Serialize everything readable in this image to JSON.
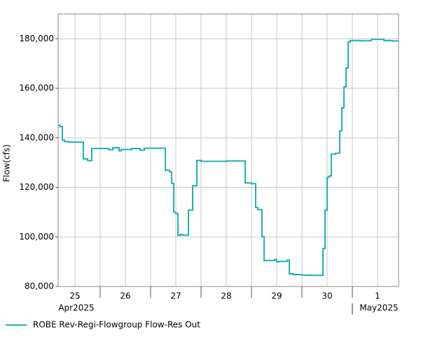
{
  "chart_data": {
    "type": "line",
    "y_label": "Flow(cfs)",
    "x": [
      "2025-04-25T04:00",
      "2025-04-25T05:00",
      "2025-04-25T06:00",
      "2025-04-25T07:00",
      "2025-04-25T09:00",
      "2025-04-25T16:00",
      "2025-04-25T18:00",
      "2025-04-25T20:00",
      "2025-04-26T04:00",
      "2025-04-26T06:00",
      "2025-04-26T09:00",
      "2025-04-26T10:00",
      "2025-04-26T15:00",
      "2025-04-26T19:00",
      "2025-04-26T21:00",
      "2025-04-27T07:00",
      "2025-04-27T09:00",
      "2025-04-27T10:00",
      "2025-04-27T11:00",
      "2025-04-27T12:00",
      "2025-04-27T13:00",
      "2025-04-27T14:00",
      "2025-04-27T15:00",
      "2025-04-27T18:00",
      "2025-04-27T20:00",
      "2025-04-27T22:00",
      "2025-04-28T00:00",
      "2025-04-28T12:00",
      "2025-04-28T21:00",
      "2025-04-29T00:00",
      "2025-04-29T02:00",
      "2025-04-29T03:00",
      "2025-04-29T05:00",
      "2025-04-29T06:00",
      "2025-04-29T11:00",
      "2025-04-29T12:00",
      "2025-04-29T13:00",
      "2025-04-29T17:00",
      "2025-04-29T18:00",
      "2025-04-29T20:00",
      "2025-04-30T00:00",
      "2025-04-30T04:00",
      "2025-04-30T10:00",
      "2025-04-30T11:00",
      "2025-04-30T12:00",
      "2025-04-30T13:00",
      "2025-04-30T14:00",
      "2025-04-30T16:00",
      "2025-04-30T18:00",
      "2025-04-30T19:00",
      "2025-04-30T20:00",
      "2025-04-30T21:00",
      "2025-04-30T22:00",
      "2025-04-30T23:00",
      "2025-05-01T04:00",
      "2025-05-01T09:00",
      "2025-05-01T15:00",
      "2025-05-01T19:00",
      "2025-05-01T22:00"
    ],
    "series": [
      {
        "name": "ROBE Rev-Regi-Flowgroup Flow-Res Out",
        "color": "#1fb3b0",
        "values": [
          145000,
          144500,
          139100,
          138500,
          138300,
          131500,
          130800,
          135700,
          135200,
          136000,
          134800,
          135300,
          135700,
          135000,
          135800,
          126900,
          126300,
          121600,
          110000,
          109400,
          100600,
          101000,
          100700,
          110800,
          120700,
          130900,
          130500,
          130700,
          121800,
          121500,
          111900,
          111000,
          100100,
          90500,
          90900,
          89900,
          90100,
          90600,
          85100,
          84800,
          84600,
          84500,
          95300,
          110800,
          124100,
          124600,
          133400,
          133800,
          142800,
          152100,
          160600,
          168200,
          178700,
          179300,
          179200,
          179800,
          179300,
          179100,
          179100
        ]
      }
    ],
    "xlim": [
      "2025-04-25T04:00",
      "2025-05-01T22:00"
    ],
    "xticks": [
      {
        "value": "2025-04-25",
        "label": "25"
      },
      {
        "value": "2025-04-26",
        "label": "26"
      },
      {
        "value": "2025-04-27",
        "label": "27"
      },
      {
        "value": "2025-04-28",
        "label": "28"
      },
      {
        "value": "2025-04-29",
        "label": "29"
      },
      {
        "value": "2025-04-30",
        "label": "30"
      },
      {
        "value": "2025-05-01",
        "label": "1"
      }
    ],
    "month_labels": [
      {
        "value": "2025-04-25",
        "label": "Apr2025"
      },
      {
        "value": "2025-05-01",
        "label": "May2025"
      }
    ],
    "ylim": [
      80000,
      190000
    ],
    "yticks": [
      {
        "value": 80000,
        "label": "80,000"
      },
      {
        "value": 100000,
        "label": "100,000"
      },
      {
        "value": 120000,
        "label": "120,000"
      },
      {
        "value": 140000,
        "label": "140,000"
      },
      {
        "value": 160000,
        "label": "160,000"
      },
      {
        "value": 180000,
        "label": "180,000"
      }
    ],
    "grid": true
  }
}
